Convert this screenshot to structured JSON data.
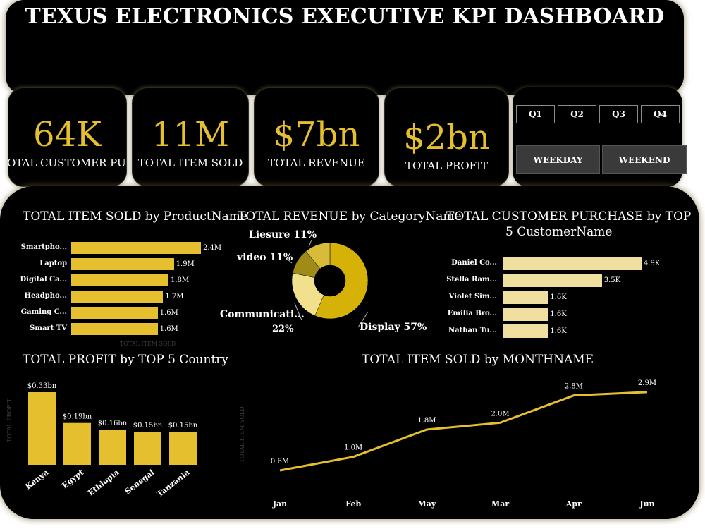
{
  "header": {
    "title": "TEXUS ELECTRONICS EXECUTIVE KPI DASHBOARD"
  },
  "kpis": [
    {
      "value": "64K",
      "label": "TOTAL CUSTOMER PURC..."
    },
    {
      "value": "11M",
      "label": "TOTAL ITEM SOLD"
    },
    {
      "value": "$7bn",
      "label": "TOTAL REVENUE"
    },
    {
      "value": "$2bn",
      "label": "TOTAL PROFIT"
    }
  ],
  "slicers": {
    "quarters": [
      "Q1",
      "Q2",
      "Q3",
      "Q4"
    ],
    "daytypes": [
      "WEEKDAY",
      "WEEKEND"
    ]
  },
  "colors": {
    "gold": "#e6bf2e",
    "gold_dark": "#c9a80d",
    "gold_light": "#f1df9f",
    "donut_light": "#f3e08c",
    "donut_olive": "#a08a18",
    "panel_bg": "#000000"
  },
  "chart_data": [
    {
      "id": "items_by_product",
      "type": "bar",
      "orientation": "horizontal",
      "title": "TOTAL ITEM SOLD by ProductName",
      "xlabel": "TOTAL ITEM SOLD",
      "categories": [
        "Smartpho...",
        "Laptop",
        "Digital Ca...",
        "Headpho...",
        "Gaming C...",
        "Smart TV"
      ],
      "values": [
        2.4,
        1.9,
        1.8,
        1.7,
        1.6,
        1.6
      ],
      "value_labels": [
        "2.4M",
        "1.9M",
        "1.8M",
        "1.7M",
        "1.6M",
        "1.6M"
      ],
      "unit": "M"
    },
    {
      "id": "revenue_by_category",
      "type": "pie",
      "donut": true,
      "title": "TOTAL REVENUE by CategoryName",
      "slices": [
        {
          "label": "Display",
          "value": 57,
          "pct": "57%",
          "color": "#d6b208"
        },
        {
          "label": "Communicati...",
          "value": 22,
          "pct": "22%",
          "color": "#f3e08c"
        },
        {
          "label": "video",
          "value": 11,
          "pct": "11%",
          "color": "#a08a18"
        },
        {
          "label": "Liesure",
          "value": 11,
          "pct": "11%",
          "color": "#d9bb3a"
        }
      ]
    },
    {
      "id": "purchases_by_customer",
      "type": "bar",
      "orientation": "horizontal",
      "title": "TOTAL CUSTOMER PURCHASE by TOP",
      "title_line2": "5 CustomerName",
      "categories": [
        "Daniel Co...",
        "Stella Ram...",
        "Violet Sim...",
        "Emilia Bro...",
        "Nathan Tu..."
      ],
      "values": [
        4.9,
        3.5,
        1.6,
        1.6,
        1.6
      ],
      "value_labels": [
        "4.9K",
        "3.5K",
        "1.6K",
        "1.6K",
        "1.6K"
      ],
      "unit": "K"
    },
    {
      "id": "profit_by_country",
      "type": "bar",
      "orientation": "vertical",
      "title": "TOTAL PROFIT by TOP 5 Country",
      "ylabel": "TOTAL PROFIT",
      "categories": [
        "Kenya",
        "Egypt",
        "Ethiopia",
        "Senegal",
        "Tanzania"
      ],
      "values": [
        0.33,
        0.19,
        0.16,
        0.15,
        0.15
      ],
      "value_labels": [
        "$0.33bn",
        "$0.19bn",
        "$0.16bn",
        "$0.15bn",
        "$0.15bn"
      ],
      "unit": "bn"
    },
    {
      "id": "items_by_month",
      "type": "line",
      "title": "TOTAL ITEM SOLD by MONTHNAME",
      "ylabel": "TOTAL ITEM SOLD",
      "x": [
        "Jan",
        "Feb",
        "May",
        "Mar",
        "Apr",
        "Jun"
      ],
      "values": [
        0.6,
        1.0,
        1.8,
        2.0,
        2.8,
        2.9
      ],
      "value_labels": [
        "0.6M",
        "1.0M",
        "1.8M",
        "2.0M",
        "2.8M",
        "2.9M"
      ],
      "unit": "M"
    }
  ]
}
